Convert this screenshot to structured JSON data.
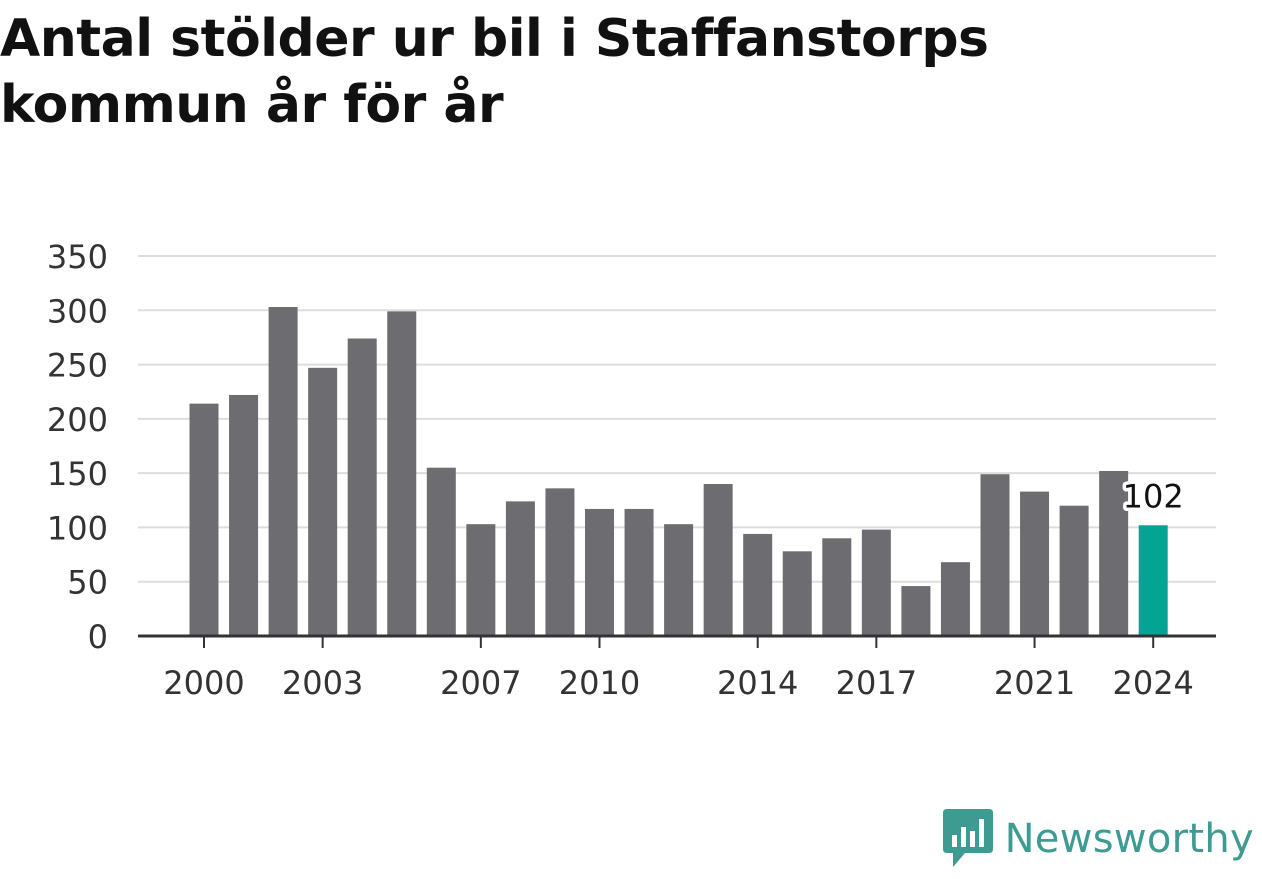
{
  "title": "Antal stölder ur bil i Staffanstorps kommun år för år",
  "brand": {
    "name": "Newsworthy",
    "icon": "newsworthy-logo-icon",
    "color": "#3d9b92"
  },
  "chart_data": {
    "type": "bar",
    "title": "Antal stölder ur bil i Staffanstorps kommun år för år",
    "categories": [
      "2000",
      "2001",
      "2002",
      "2003",
      "2004",
      "2005",
      "2006",
      "2007",
      "2008",
      "2009",
      "2010",
      "2011",
      "2012",
      "2013",
      "2014",
      "2015",
      "2016",
      "2017",
      "2018",
      "2019",
      "2020",
      "2021",
      "2022",
      "2023",
      "2024"
    ],
    "values": [
      214,
      222,
      303,
      247,
      274,
      299,
      155,
      103,
      124,
      136,
      117,
      117,
      103,
      140,
      94,
      78,
      90,
      98,
      46,
      68,
      149,
      133,
      120,
      152,
      102
    ],
    "xticks": [
      "2000",
      "2003",
      "2007",
      "2010",
      "2014",
      "2017",
      "2021",
      "2024"
    ],
    "yticks": [
      0,
      50,
      100,
      150,
      200,
      250,
      300,
      350
    ],
    "ylim": [
      0,
      350
    ],
    "xlabel": "",
    "ylabel": "",
    "grid": true,
    "highlight": {
      "category": "2024",
      "label": "102"
    },
    "colors": {
      "bar": "#6d6c71",
      "highlight": "#04a495",
      "grid": "#dddddd",
      "axis": "#333333",
      "text": "#333333"
    }
  }
}
